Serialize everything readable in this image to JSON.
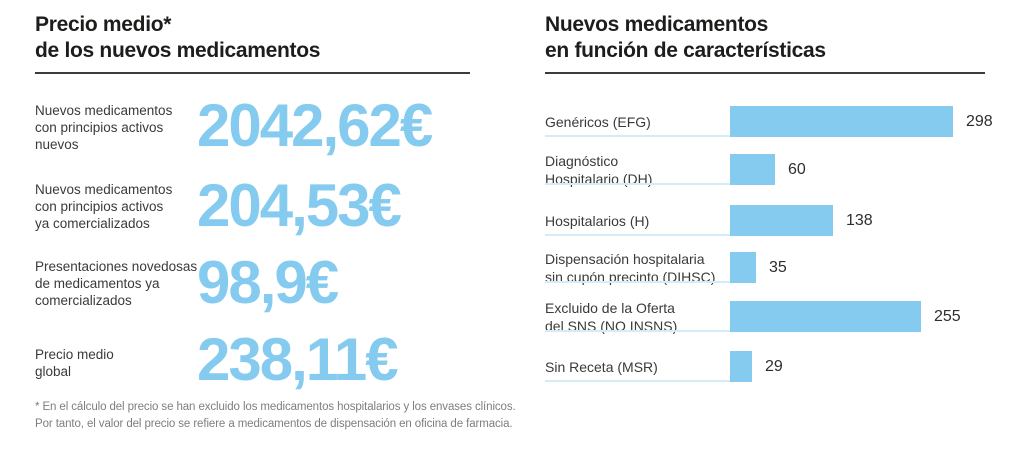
{
  "left_panel": {
    "title": "Precio medio*\nde los nuevos medicamentos",
    "footnote": "* En el cálculo del precio se han excluido los medicamentos hospitalarios y los envases clínicos.\nPor tanto, el valor del precio se refiere a medicamentos de dispensación en oficina de farmacia."
  },
  "right_panel": {
    "title": "Nuevos medicamentos\nen función de características"
  },
  "colors": {
    "accent_blue": "#85cbf0",
    "separator_blue": "#d5ecf8",
    "title_black": "#1d1d1b",
    "label_gray": "#3a3a39",
    "footnote_gray": "#7e7e7d"
  },
  "chart_data": [
    {
      "type": "table",
      "title": "Precio medio* de los nuevos medicamentos",
      "categories": [
        "Nuevos medicamentos con principios activos nuevos",
        "Nuevos medicamentos con principios activos ya comercializados",
        "Presentaciones novedosas de medicamentos ya comercializados",
        "Precio medio global"
      ],
      "display_labels": [
        "Nuevos medicamentos\ncon principios activos\nnuevos",
        "Nuevos medicamentos\ncon principios activos\nya comercializados",
        "Presentaciones novedosas\nde medicamentos ya\ncomercializados",
        "Precio medio\nglobal"
      ],
      "values": [
        "2042,62€",
        "204,53€",
        "98,9€",
        "238,11€"
      ],
      "unit": "EUR"
    },
    {
      "type": "bar",
      "orientation": "horizontal",
      "title": "Nuevos medicamentos en función de características",
      "categories": [
        "Genéricos (EFG)",
        "Diagnóstico Hospitalario (DH)",
        "Hospitalarios (H)",
        "Dispensación hospitalaria sin cupón precinto (DIHSC)",
        "Excluido de la Oferta del SNS (NO INSNS)",
        "Sin Receta (MSR)"
      ],
      "display_labels": [
        "Genéricos (EFG)",
        "Diagnóstico\nHospitalario (DH)",
        "Hospitalarios (H)",
        "Dispensación hospitalaria\nsin cupón precinto (DIHSC)",
        "Excluido de la Oferta\ndel SNS (NO INSNS)",
        "Sin Receta (MSR)"
      ],
      "values": [
        298,
        60,
        138,
        35,
        255,
        29
      ],
      "xlim": [
        0,
        300
      ],
      "value_labels_shown": true,
      "grid": false,
      "legend": "none",
      "bar_color": "#85cbf0"
    }
  ]
}
